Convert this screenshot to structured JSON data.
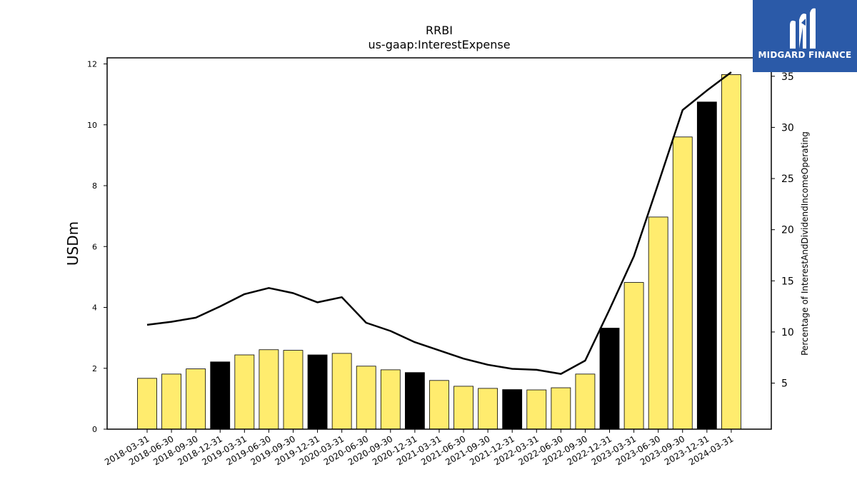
{
  "chart_data": {
    "type": "bar",
    "title": "RRBI",
    "subtitle": "us-gaap:InterestExpense",
    "ylabel": "USDm",
    "y2label": "Percentage of InterestAndDividendIncomeOperating",
    "ylim": [
      0,
      12.2
    ],
    "y2lim": [
      0.5,
      36.8
    ],
    "yticks": [
      0,
      2,
      4,
      6,
      8,
      10,
      12
    ],
    "y2ticks": [
      5,
      10,
      15,
      20,
      25,
      30,
      35
    ],
    "categories": [
      "2018-03-31",
      "2018-06-30",
      "2018-09-30",
      "2018-12-31",
      "2019-03-31",
      "2019-06-30",
      "2019-09-30",
      "2019-12-31",
      "2020-03-31",
      "2020-06-30",
      "2020-09-30",
      "2020-12-31",
      "2021-03-31",
      "2021-06-30",
      "2021-09-30",
      "2021-12-31",
      "2022-03-31",
      "2022-06-30",
      "2022-09-30",
      "2022-12-31",
      "2023-03-31",
      "2023-06-30",
      "2023-09-30",
      "2023-12-31",
      "2024-03-31"
    ],
    "series": [
      {
        "type": "bar",
        "values": [
          1.67,
          1.81,
          1.98,
          2.21,
          2.44,
          2.61,
          2.59,
          2.44,
          2.49,
          2.07,
          1.95,
          1.86,
          1.6,
          1.41,
          1.34,
          1.3,
          1.29,
          1.36,
          1.81,
          3.32,
          4.82,
          6.97,
          9.6,
          10.75,
          11.65
        ],
        "colors": [
          "#ffec6e",
          "#ffec6e",
          "#ffec6e",
          "#000000",
          "#ffec6e",
          "#ffec6e",
          "#ffec6e",
          "#000000",
          "#ffec6e",
          "#ffec6e",
          "#ffec6e",
          "#000000",
          "#ffec6e",
          "#ffec6e",
          "#ffec6e",
          "#000000",
          "#ffec6e",
          "#ffec6e",
          "#ffec6e",
          "#000000",
          "#ffec6e",
          "#ffec6e",
          "#ffec6e",
          "#000000",
          "#ffec6e"
        ]
      },
      {
        "type": "line",
        "axis": "right",
        "color": "#000000",
        "values": [
          10.7,
          11.0,
          11.4,
          12.5,
          13.7,
          14.3,
          13.8,
          12.9,
          13.4,
          10.9,
          10.1,
          9.0,
          8.2,
          7.4,
          6.8,
          6.4,
          6.3,
          5.9,
          7.2,
          12.2,
          17.4,
          24.5,
          31.7,
          33.6,
          35.4
        ]
      }
    ],
    "grid": false,
    "legend": "none"
  },
  "logo": {
    "text": "MIDGARD FINANCE",
    "bg_color": "#2b5aa8"
  }
}
